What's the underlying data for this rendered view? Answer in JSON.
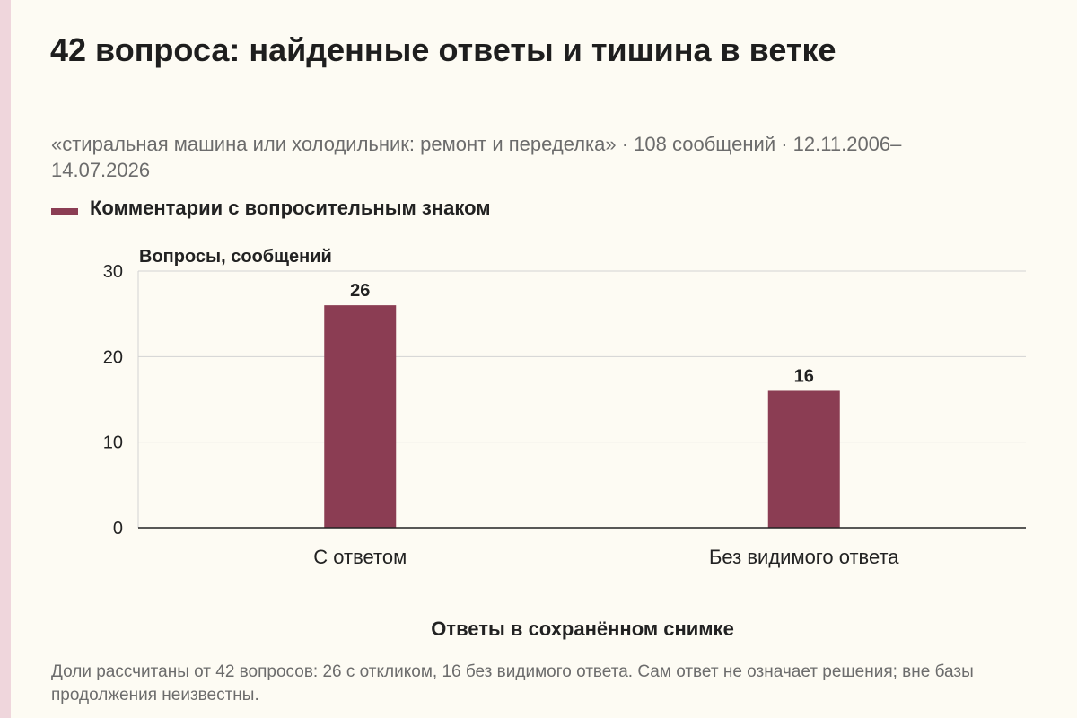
{
  "title": "42 вопроса: найденные ответы и тишина в ветке",
  "subtitle": "«стиральная машина или холодильник: ремонт и переделка» · 108 сообщений · 12.11.2006–14.07.2026",
  "footnote": "Доли рассчитаны от 42 вопросов: 26 с откликом, 16 без видимого ответа. Сам ответ не означает решения; вне базы продолжения неизвестны.",
  "colors": {
    "bar": "#8b3d53",
    "side_stripe": "#efd6dc",
    "background": "#fdfbf3"
  },
  "chart_data": {
    "type": "bar",
    "categories": [
      "С ответом",
      "Без видимого ответа"
    ],
    "series": [
      {
        "name": "Комментарии с вопросительным знаком",
        "values": [
          26,
          16
        ],
        "color": "#8b3d53"
      }
    ],
    "data_labels": [
      "26",
      "16"
    ],
    "ylabel": "Вопросы, сообщений",
    "xlabel": "Ответы в сохранённом снимке",
    "ylim": [
      0,
      30
    ],
    "yticks": [
      0,
      10,
      20,
      30
    ],
    "grid": true,
    "legend_position": "top-left"
  }
}
